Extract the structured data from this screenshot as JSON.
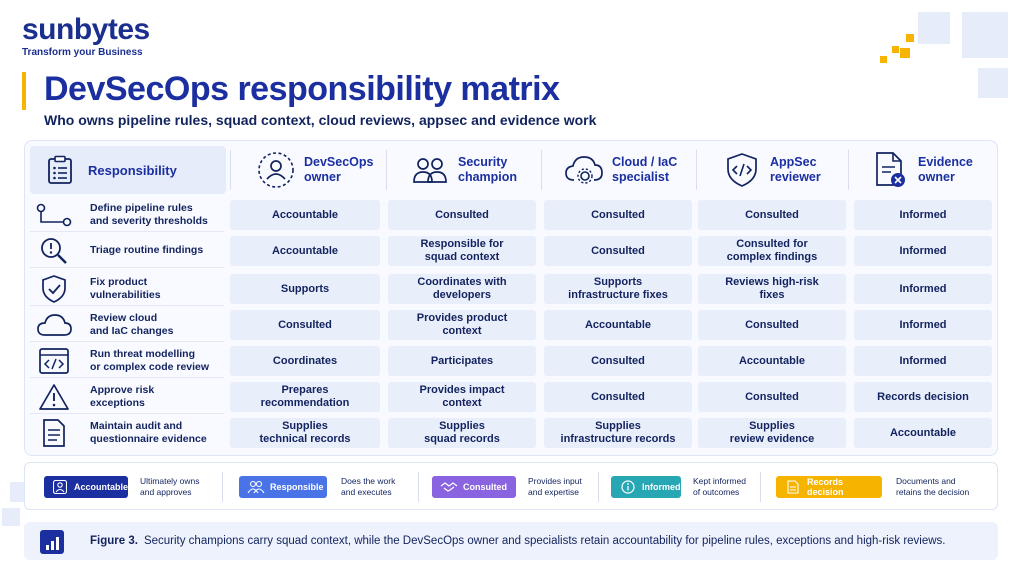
{
  "brand": {
    "name": "sunbytes",
    "tagline": "Transform your Business"
  },
  "title": "DevSecOps responsibility matrix",
  "subtitle": "Who owns pipeline rules, squad context, cloud reviews, appsec and evidence work",
  "header": {
    "responsibility": "Responsibility",
    "roles": [
      {
        "line1": "DevSecOps",
        "line2": "owner",
        "icon": "person-dashed-circle-icon"
      },
      {
        "line1": "Security",
        "line2": "champion",
        "icon": "people-icon"
      },
      {
        "line1": "Cloud / IaC",
        "line2": "specialist",
        "icon": "cloud-gear-icon"
      },
      {
        "line1": "AppSec",
        "line2": "reviewer",
        "icon": "shield-code-icon"
      },
      {
        "line1": "Evidence",
        "line2": "owner",
        "icon": "document-badge-icon"
      }
    ]
  },
  "rows": [
    {
      "label1": "Define pipeline rules",
      "label2": "and severity thresholds",
      "icon": "pipeline-icon",
      "cells": [
        [
          "Accountable"
        ],
        [
          "Consulted"
        ],
        [
          "Consulted"
        ],
        [
          "Consulted"
        ],
        [
          "Informed"
        ]
      ]
    },
    {
      "label1": "Triage routine findings",
      "label2": "",
      "icon": "search-alert-icon",
      "cells": [
        [
          "Accountable"
        ],
        [
          "Responsible for",
          "squad context"
        ],
        [
          "Consulted"
        ],
        [
          "Consulted for",
          "complex findings"
        ],
        [
          "Informed"
        ]
      ]
    },
    {
      "label1": "Fix product",
      "label2": "vulnerabilities",
      "icon": "shield-check-icon",
      "cells": [
        [
          "Supports"
        ],
        [
          "Coordinates with",
          "developers"
        ],
        [
          "Supports",
          "infrastructure fixes"
        ],
        [
          "Reviews high-risk",
          "fixes"
        ],
        [
          "Informed"
        ]
      ]
    },
    {
      "label1": "Review cloud",
      "label2": "and IaC changes",
      "icon": "cloud-icon",
      "cells": [
        [
          "Consulted"
        ],
        [
          "Provides product",
          "context"
        ],
        [
          "Accountable"
        ],
        [
          "Consulted"
        ],
        [
          "Informed"
        ]
      ]
    },
    {
      "label1": "Run threat modelling",
      "label2": "or complex code review",
      "icon": "code-window-icon",
      "cells": [
        [
          "Coordinates"
        ],
        [
          "Participates"
        ],
        [
          "Consulted"
        ],
        [
          "Accountable"
        ],
        [
          "Informed"
        ]
      ]
    },
    {
      "label1": "Approve risk",
      "label2": "exceptions",
      "icon": "warning-icon",
      "cells": [
        [
          "Prepares",
          "recommendation"
        ],
        [
          "Provides impact",
          "context"
        ],
        [
          "Consulted"
        ],
        [
          "Consulted"
        ],
        [
          "Records decision"
        ]
      ]
    },
    {
      "label1": "Maintain audit and",
      "label2": "questionnaire evidence",
      "icon": "document-icon",
      "cells": [
        [
          "Supplies",
          "technical records"
        ],
        [
          "Supplies",
          "squad records"
        ],
        [
          "Supplies",
          "infrastructure records"
        ],
        [
          "Supplies",
          "review evidence"
        ],
        [
          "Accountable"
        ]
      ]
    }
  ],
  "legend": [
    {
      "badge": "Accountable",
      "desc1": "Ultimately owns",
      "desc2": "and approves",
      "color": "#1b2fa0",
      "icon": "person-icon"
    },
    {
      "badge": "Responsible",
      "desc1": "Does the work",
      "desc2": "and executes",
      "color": "#4a73e8",
      "icon": "people-icon"
    },
    {
      "badge": "Consulted",
      "desc1": "Provides input",
      "desc2": "and expertise",
      "color": "#8a63e0",
      "icon": "handshake-icon"
    },
    {
      "badge": "Informed",
      "desc1": "Kept informed",
      "desc2": "of outcomes",
      "color": "#27a6b4",
      "icon": "info-icon"
    },
    {
      "badge": "Records decision",
      "desc1": "Documents and",
      "desc2": "retains the decision",
      "color": "#f6b400",
      "icon": "document-icon"
    }
  ],
  "figure": {
    "label": "Figure 3.",
    "text": "Security champions carry squad context, while the DevSecOps owner and specialists retain accountability for pipeline rules, exceptions and high-risk reviews.",
    "icon": "bar-chart-icon"
  }
}
